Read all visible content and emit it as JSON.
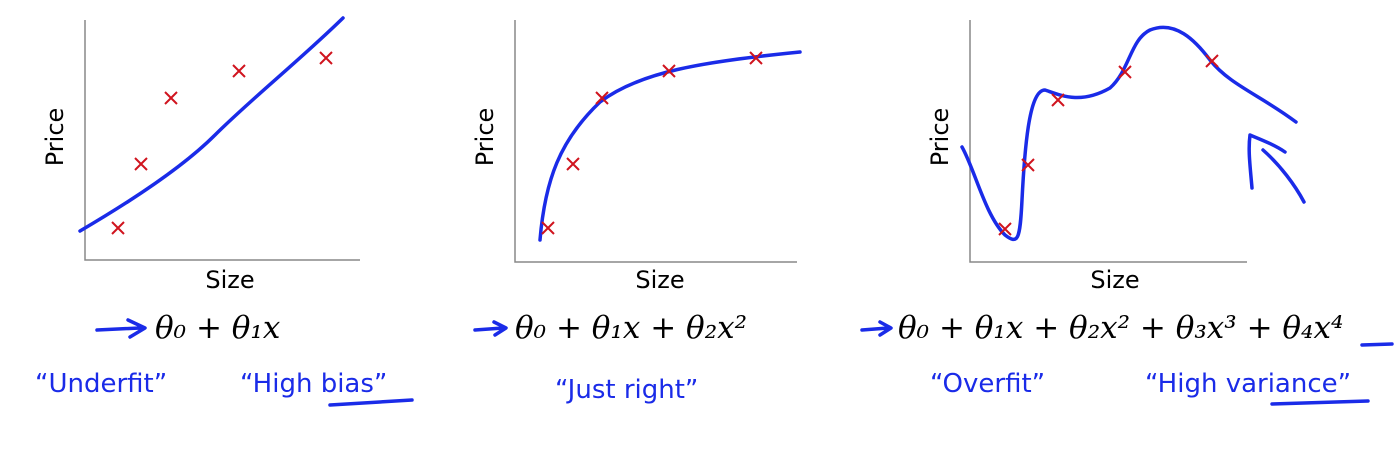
{
  "panels": [
    {
      "y_label": "Price",
      "x_label": "Size",
      "formula": "θ₀ + θ₁x",
      "notes": [
        "“Underfit”",
        "“High bias”"
      ]
    },
    {
      "y_label": "Price",
      "x_label": "Size",
      "formula": "θ₀ + θ₁x + θ₂x²",
      "notes": [
        "“Just right”"
      ]
    },
    {
      "y_label": "Price",
      "x_label": "Size",
      "formula": "θ₀ + θ₁x + θ₂x² + θ₃x³ + θ₄x⁴",
      "notes": [
        "“Overfit”",
        "“High variance”"
      ]
    }
  ]
}
